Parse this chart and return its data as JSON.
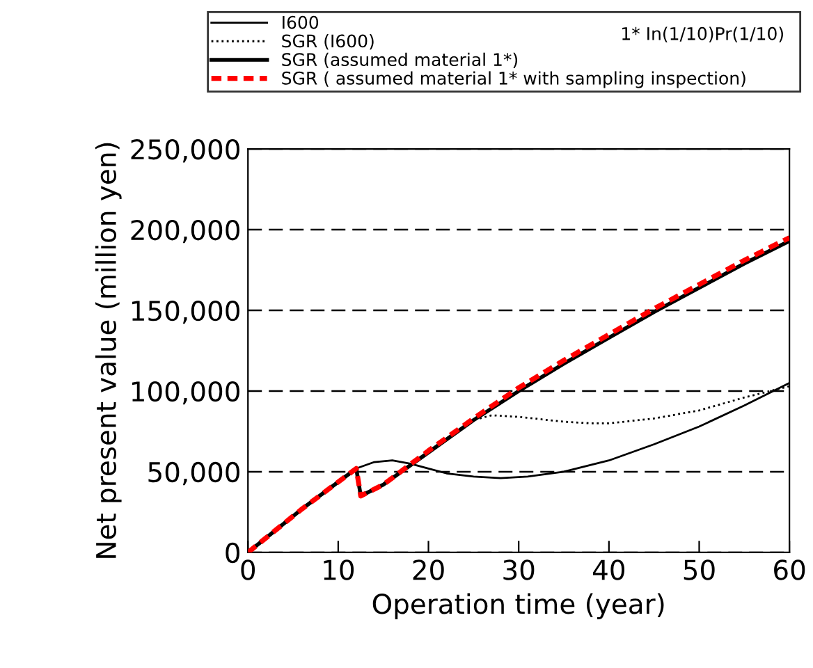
{
  "chart_data": {
    "type": "line",
    "xlabel": "Operation time (year)",
    "ylabel": "Net present value (million yen)",
    "xlim": [
      0,
      60
    ],
    "xticks": [
      0,
      10,
      20,
      30,
      40,
      50,
      60
    ],
    "ylim": [
      0,
      250000
    ],
    "yticks": [
      {
        "value": 0,
        "label": "0"
      },
      {
        "value": 50000,
        "label": "50,000"
      },
      {
        "value": 100000,
        "label": "100,000"
      },
      {
        "value": 150000,
        "label": "150,000"
      },
      {
        "value": 200000,
        "label": "200,000"
      },
      {
        "value": 250000,
        "label": "250,000"
      }
    ],
    "grid": "y",
    "legend": "top",
    "marker": "none",
    "annotations": [
      "1* In(1/10)Pr(1/10)"
    ],
    "series": [
      {
        "name": "I600",
        "color": "#000000",
        "line_style": "solid",
        "x": [
          0,
          6,
          12,
          14,
          16,
          18,
          20,
          22,
          25,
          28,
          31,
          35,
          40,
          45,
          50,
          55,
          60
        ],
        "values": [
          0,
          27000,
          52000,
          56000,
          57000,
          55000,
          52000,
          49000,
          47000,
          46000,
          47000,
          50000,
          57000,
          67000,
          78000,
          91000,
          105000
        ]
      },
      {
        "name": "SGR (I600)",
        "color": "#000000",
        "line_style": "dotted",
        "x": [
          0,
          6,
          12,
          12.5,
          15,
          20,
          25,
          27,
          30,
          35,
          38,
          40,
          45,
          50,
          55,
          60
        ],
        "values": [
          0,
          27000,
          52000,
          35000,
          42000,
          62000,
          82000,
          85000,
          84000,
          81000,
          80000,
          80000,
          83000,
          88000,
          96000,
          103000
        ]
      },
      {
        "name": "SGR (assumed material 1*)",
        "color": "#000000",
        "line_style": "solid",
        "x": [
          0,
          6,
          12,
          12.5,
          15,
          20,
          25,
          30,
          35,
          40,
          45,
          50,
          55,
          60
        ],
        "values": [
          0,
          27000,
          52000,
          35000,
          42000,
          62000,
          82000,
          100000,
          117000,
          133000,
          149000,
          164000,
          179000,
          193000
        ]
      },
      {
        "name": "SGR ( assumed material 1* with sampling inspection)",
        "color": "#ff0000",
        "line_style": "dashed",
        "x": [
          0,
          6,
          12,
          12.5,
          15,
          20,
          25,
          30,
          35,
          40,
          45,
          50,
          55,
          60
        ],
        "values": [
          0,
          27000,
          52000,
          35000,
          42000,
          63000,
          83000,
          102000,
          119000,
          135000,
          151000,
          166000,
          181000,
          195000
        ]
      }
    ]
  }
}
